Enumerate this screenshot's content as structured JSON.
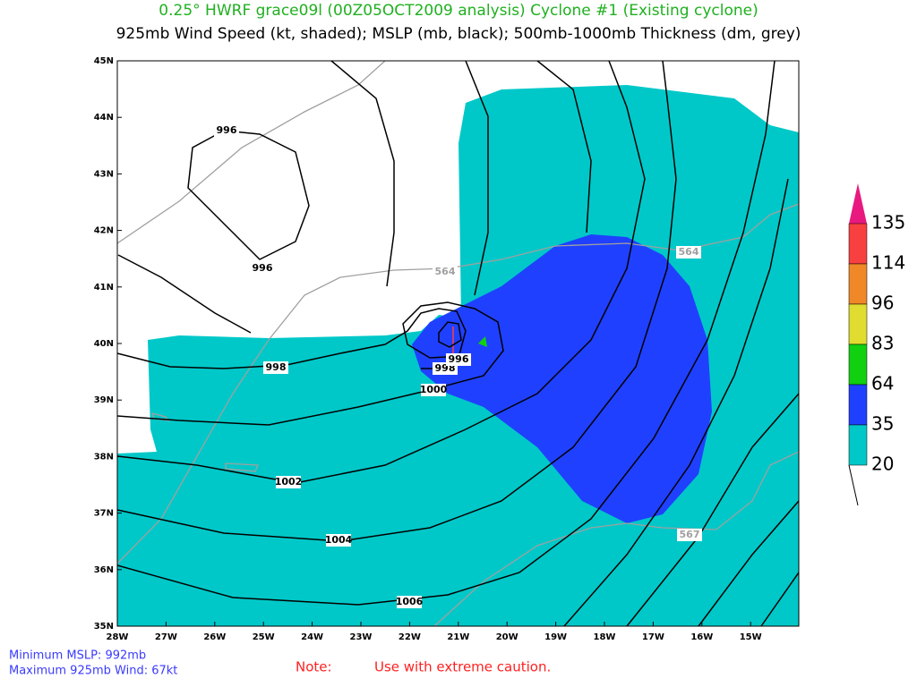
{
  "header": {
    "title": "0.25° HWRF grace09l (00Z05OCT2009 analysis) Cyclone #1 (Existing cyclone)",
    "subtitle": "925mb Wind Speed (kt, shaded); MSLP (mb, black); 500mb-1000mb Thickness (dm, grey)"
  },
  "map": {
    "lat_labels": [
      "45N",
      "44N",
      "43N",
      "42N",
      "41N",
      "40N",
      "39N",
      "38N",
      "37N",
      "36N",
      "35N"
    ],
    "lon_labels": [
      "28W",
      "27W",
      "26W",
      "25W",
      "24W",
      "23W",
      "22W",
      "21W",
      "20W",
      "19W",
      "18W",
      "17W",
      "16W",
      "15W"
    ],
    "mslp_labels": [
      "996",
      "996",
      "998",
      "998",
      "996",
      "1000",
      "1002",
      "1004",
      "1006"
    ],
    "thickness_labels": [
      "564",
      "564",
      "567"
    ]
  },
  "colorbar": {
    "labels": [
      "135",
      "114",
      "96",
      "83",
      "64",
      "35",
      "20"
    ],
    "colors": [
      "#e8197f",
      "#f84040",
      "#f08828",
      "#e0dc30",
      "#10d010",
      "#2040ff",
      "#00c8c8"
    ]
  },
  "footer": {
    "min_mslp": "Minimum MSLP: 992mb",
    "max_wind": "Maximum 925mb Wind: 67kt",
    "note": "Note:",
    "caution": "Use with extreme caution."
  }
}
